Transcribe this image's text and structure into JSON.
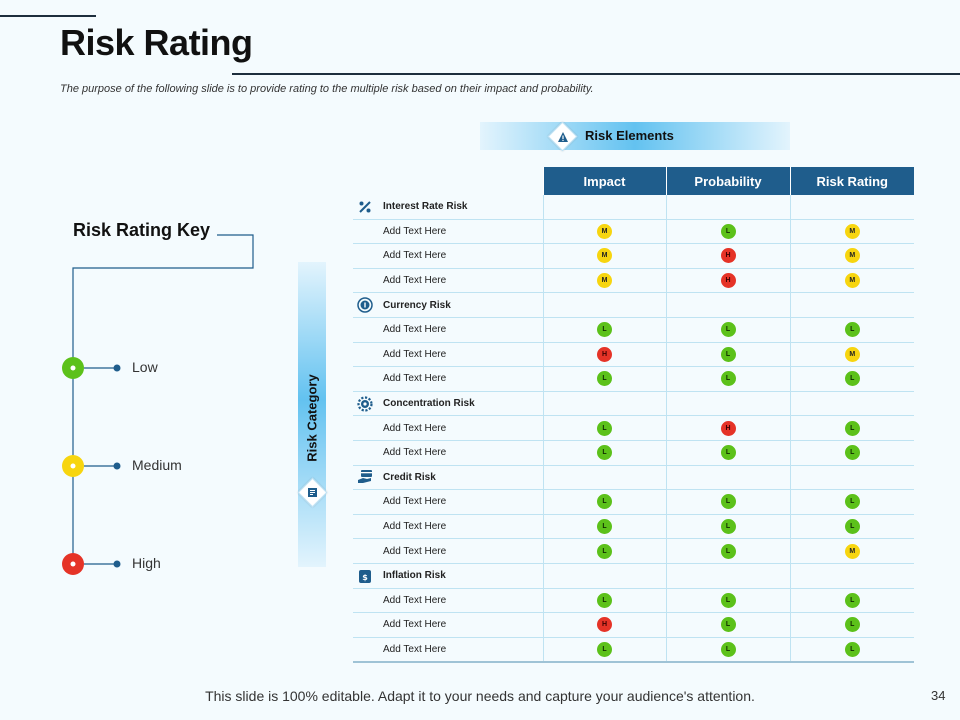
{
  "title": "Risk Rating",
  "subtitle": "The purpose of the following slide is to provide rating to the multiple risk based on their impact and probability.",
  "risk_elements_label": "Risk Elements",
  "risk_category_label": "Risk Category",
  "risk_key": {
    "title": "Risk Rating Key",
    "levels": [
      {
        "label": "Low",
        "color": "#5cc11a"
      },
      {
        "label": "Medium",
        "color": "#f7d50f"
      },
      {
        "label": "High",
        "color": "#e53327"
      }
    ]
  },
  "table": {
    "headers": [
      "Impact",
      "Probability",
      "Risk  Rating"
    ],
    "groups": [
      {
        "name": "Interest Rate Risk",
        "icon": "percentage-icon",
        "rows": [
          {
            "label": "Add Text Here",
            "values": [
              "M",
              "L",
              "M"
            ]
          },
          {
            "label": "Add Text Here",
            "values": [
              "M",
              "H",
              "M"
            ]
          },
          {
            "label": "Add Text Here",
            "values": [
              "M",
              "H",
              "M"
            ]
          }
        ]
      },
      {
        "name": "Currency Risk",
        "icon": "currency-coin-icon",
        "rows": [
          {
            "label": "Add Text Here",
            "values": [
              "L",
              "L",
              "L"
            ]
          },
          {
            "label": "Add Text Here",
            "values": [
              "H",
              "L",
              "M"
            ]
          },
          {
            "label": "Add Text Here",
            "values": [
              "L",
              "L",
              "L"
            ]
          }
        ]
      },
      {
        "name": "Concentration Risk",
        "icon": "gear-icon",
        "rows": [
          {
            "label": "Add Text Here",
            "values": [
              "L",
              "H",
              "L"
            ]
          },
          {
            "label": "Add Text Here",
            "values": [
              "L",
              "L",
              "L"
            ]
          }
        ]
      },
      {
        "name": "Credit Risk",
        "icon": "credit-card-hand-icon",
        "rows": [
          {
            "label": "Add Text Here",
            "values": [
              "L",
              "L",
              "L"
            ]
          },
          {
            "label": "Add Text Here",
            "values": [
              "L",
              "L",
              "L"
            ]
          },
          {
            "label": "Add Text Here",
            "values": [
              "L",
              "L",
              "M"
            ]
          }
        ]
      },
      {
        "name": "Inflation Risk",
        "icon": "money-bag-icon",
        "rows": [
          {
            "label": "Add Text Here",
            "values": [
              "L",
              "L",
              "L"
            ]
          },
          {
            "label": "Add Text Here",
            "values": [
              "H",
              "L",
              "L"
            ]
          },
          {
            "label": "Add Text Here",
            "values": [
              "L",
              "L",
              "L"
            ]
          }
        ]
      }
    ]
  },
  "footer": "This slide is 100% editable. Adapt it to your needs and capture your audience's attention.",
  "page_number": "34"
}
